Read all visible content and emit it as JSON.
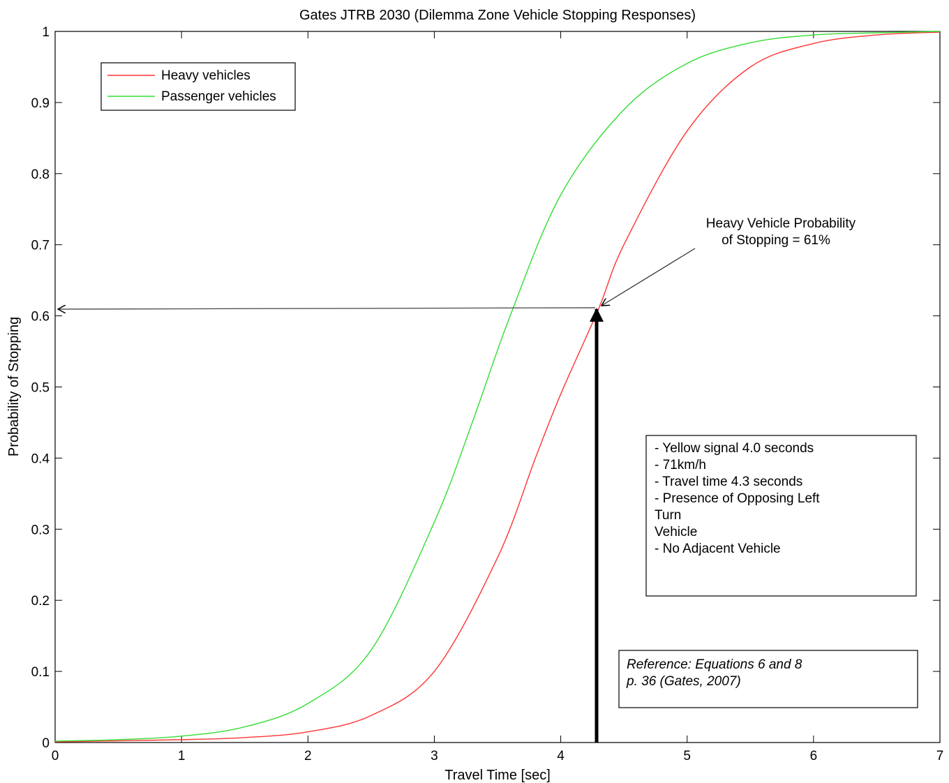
{
  "chart_data": {
    "type": "line",
    "title": "Gates JTRB 2030 (Dilemma Zone Vehicle Stopping Responses)",
    "xlabel": "Travel Time [sec]",
    "ylabel": "Probability of Stopping",
    "xlim": [
      0,
      7
    ],
    "ylim": [
      0,
      1
    ],
    "xticks": [
      "0",
      "1",
      "2",
      "3",
      "4",
      "5",
      "6",
      "7"
    ],
    "yticks": [
      "0",
      "0.1",
      "0.2",
      "0.3",
      "0.4",
      "0.5",
      "0.6",
      "0.7",
      "0.8",
      "0.9",
      "1"
    ],
    "grid": false,
    "legend_position": "top-left",
    "series": [
      {
        "name": "Heavy vehicles",
        "color": "#ff3333",
        "x": [
          0,
          1,
          1.5,
          2,
          2.5,
          3,
          3.5,
          3.8,
          4,
          4.3,
          4.5,
          5,
          5.5,
          6,
          6.5,
          7
        ],
        "y": [
          0.001,
          0.004,
          0.007,
          0.015,
          0.038,
          0.1,
          0.26,
          0.4,
          0.49,
          0.61,
          0.7,
          0.86,
          0.95,
          0.983,
          0.995,
          0.999
        ]
      },
      {
        "name": "Passenger vehicles",
        "color": "#33dd33",
        "x": [
          0,
          0.5,
          1,
          1.5,
          2,
          2.5,
          3,
          3.3,
          3.6,
          4,
          4.5,
          5,
          5.5,
          6,
          6.5,
          7
        ],
        "y": [
          0.002,
          0.004,
          0.009,
          0.022,
          0.055,
          0.13,
          0.31,
          0.45,
          0.6,
          0.77,
          0.89,
          0.955,
          0.984,
          0.995,
          0.998,
          1.0
        ]
      }
    ],
    "annotations": {
      "callout_line1": "Heavy Vehicle Probability",
      "callout_line2": "of Stopping = 61%",
      "marker_x": 4.3,
      "marker_y": 0.61,
      "conditions": [
        "- Yellow signal 4.0 seconds",
        "- 71km/h",
        "- Travel time 4.3 seconds",
        "- Presence of Opposing Left",
        "Turn",
        "Vehicle",
        "- No Adjacent Vehicle"
      ],
      "reference": [
        "Reference: Equations 6 and 8",
        "p. 36 (Gates, 2007)"
      ]
    }
  }
}
